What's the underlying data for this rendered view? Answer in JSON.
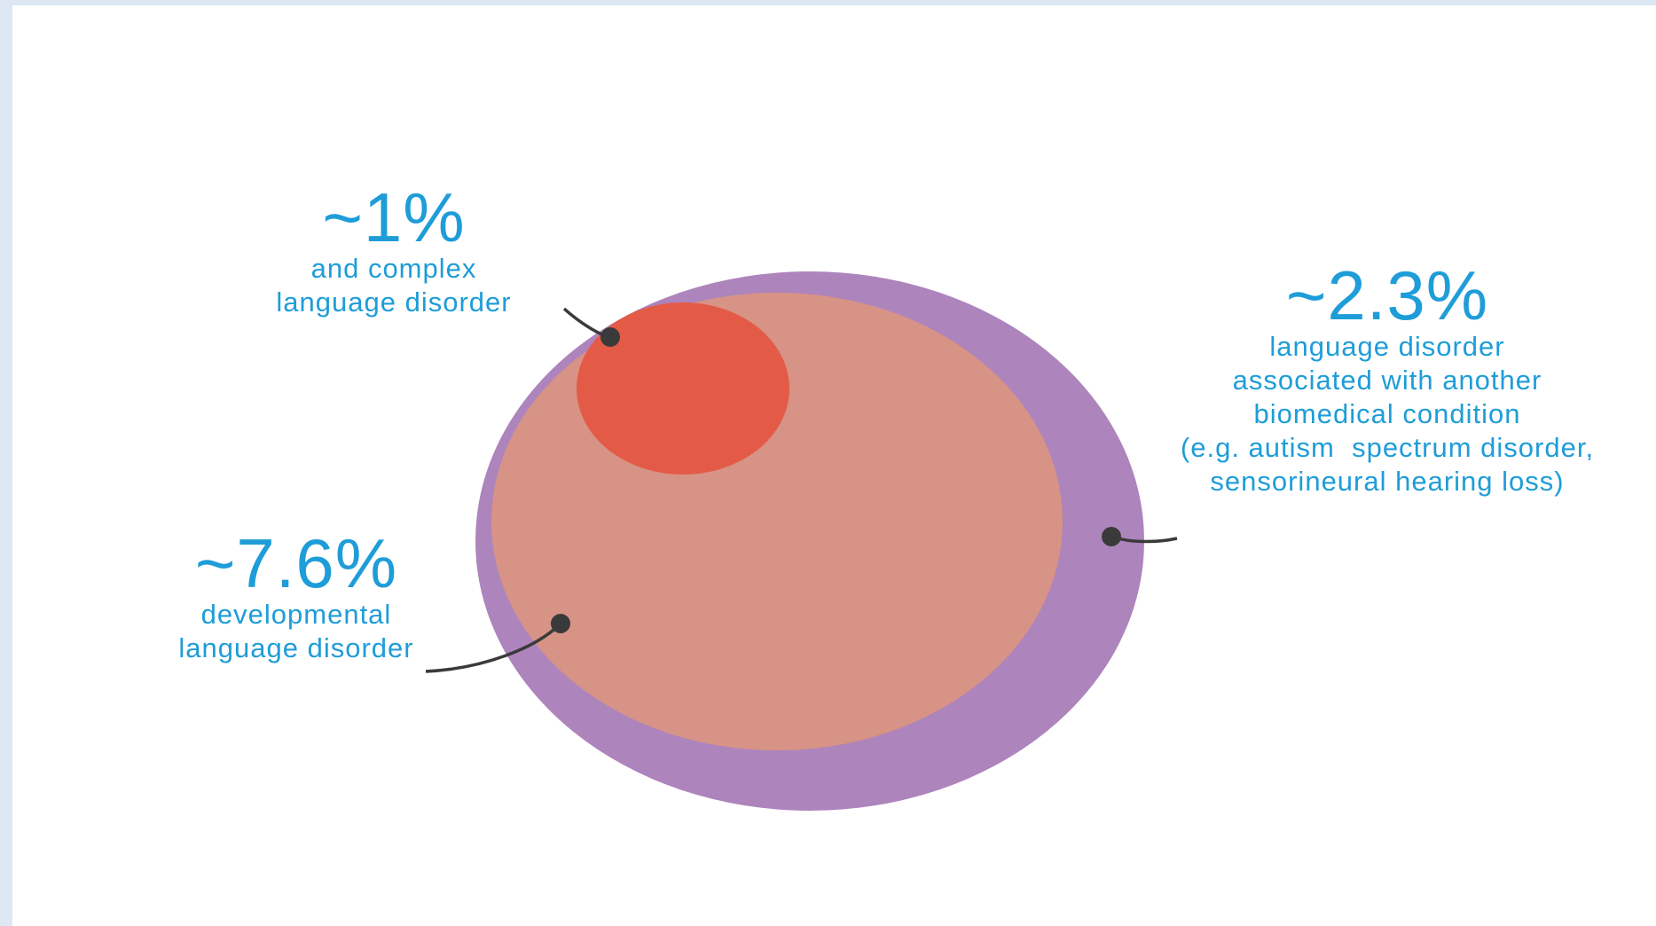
{
  "diagram": {
    "colors": {
      "outer_circle": "#ae84bc",
      "middle_circle": "#d79385",
      "inner_circle": "#e35b47",
      "text": "#1e9dd8",
      "leader": "#3a3a3a"
    },
    "groups": [
      {
        "id": "complex",
        "percent": "~1%",
        "desc_lines": [
          "and complex",
          "language disorder"
        ]
      },
      {
        "id": "associated",
        "percent": "~2.3%",
        "desc_lines": [
          "language disorder",
          "associated with another",
          "biomedical condition",
          "(e.g. autism  spectrum disorder,",
          "sensorineural hearing loss)"
        ]
      },
      {
        "id": "developmental",
        "percent": "~7.6%",
        "desc_lines": [
          "developmental",
          "language disorder"
        ]
      }
    ]
  }
}
